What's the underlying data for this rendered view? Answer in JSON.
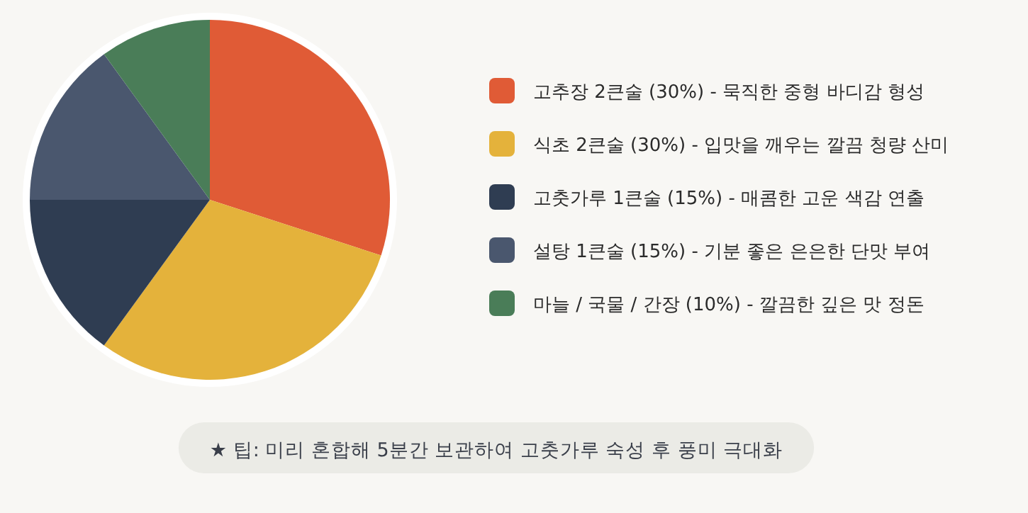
{
  "chart_data": {
    "type": "pie",
    "categories": [
      "고추장 2큰술 (30%) - 묵직한 중형 바디감 형성",
      "식초 2큰술 (30%) - 입맛을 깨우는 깔끔 청량 산미",
      "고춧가루 1큰술 (15%) - 매콤한 고운 색감 연출",
      "설탕 1큰술 (15%) - 기분 좋은 은은한 단맛 부여",
      "마늘 / 국물 / 간장 (10%) - 깔끔한 깊은 맛 정돈"
    ],
    "values": [
      30,
      30,
      15,
      15,
      10
    ],
    "colors": [
      "#e05b36",
      "#e4b23b",
      "#2f3d52",
      "#4a576e",
      "#4a7d58"
    ],
    "legend": "right",
    "annotations": [
      "★ 팁: 미리 혼합해 5분간 보관하여 고춧가루 숙성 후 풍미 극대화"
    ]
  }
}
